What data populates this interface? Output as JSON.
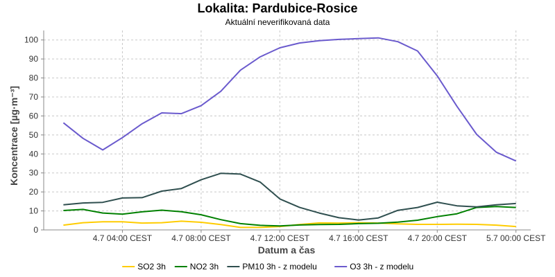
{
  "chart_data": {
    "type": "line",
    "title": "Lokalita: Pardubice-Rosice",
    "subtitle": "Aktuální neverifikovaná data",
    "xlabel": "Datum a čas",
    "ylabel": "Koncentrace [µg·m⁻³]",
    "ylim": [
      0,
      105
    ],
    "yticks": [
      0,
      10,
      20,
      30,
      40,
      50,
      60,
      70,
      80,
      90,
      100
    ],
    "grid": true,
    "legend_position": "bottom",
    "x_hours": [
      1,
      2,
      3,
      4,
      5,
      6,
      7,
      8,
      9,
      10,
      11,
      12,
      13,
      14,
      15,
      16,
      17,
      18,
      19,
      20,
      21,
      22,
      23,
      24
    ],
    "xticks": [
      {
        "hour": 4,
        "label": "4.7 04:00 CEST"
      },
      {
        "hour": 8,
        "label": "4.7 08:00 CEST"
      },
      {
        "hour": 12,
        "label": "4.7 12:00 CEST"
      },
      {
        "hour": 16,
        "label": "4.7 16:00 CEST"
      },
      {
        "hour": 20,
        "label": "4.7 20:00 CEST"
      },
      {
        "hour": 24,
        "label": "5.7 00:00 CEST"
      }
    ],
    "series": [
      {
        "name": "SO2 3h",
        "color": "#ffcc00",
        "values": [
          2.5,
          3.8,
          4.3,
          4.3,
          3.6,
          3.8,
          4.6,
          4.0,
          2.8,
          1.3,
          1.3,
          1.8,
          2.8,
          3.7,
          3.6,
          3.8,
          3.6,
          3.2,
          2.9,
          2.9,
          3.0,
          2.9,
          2.5,
          1.8
        ]
      },
      {
        "name": "NO2 3h",
        "color": "#008000",
        "values": [
          10.2,
          10.8,
          8.9,
          8.3,
          9.5,
          10.4,
          9.6,
          8.0,
          5.4,
          3.3,
          2.4,
          2.1,
          2.6,
          2.8,
          2.9,
          3.3,
          3.5,
          4.1,
          5.1,
          7.0,
          8.5,
          11.8,
          12.3,
          11.8
        ]
      },
      {
        "name": "PM10 3h - z modelu",
        "color": "#2f4f4f",
        "values": [
          13.2,
          14.2,
          14.5,
          16.8,
          17.0,
          20.4,
          21.8,
          26.4,
          29.8,
          29.4,
          25.2,
          16.3,
          11.9,
          8.9,
          6.4,
          5.2,
          6.3,
          10.3,
          11.8,
          14.6,
          12.7,
          12.1,
          13.2,
          13.9
        ]
      },
      {
        "name": "O3 3h - z modelu",
        "color": "#6a5acd",
        "values": [
          56.4,
          48.2,
          42.1,
          48.6,
          55.9,
          61.6,
          61.2,
          65.4,
          73.0,
          84.1,
          91.1,
          95.9,
          98.4,
          99.6,
          100.3,
          100.7,
          101.1,
          99.1,
          94.2,
          81.1,
          65.1,
          50.3,
          40.9,
          36.3
        ]
      }
    ]
  }
}
